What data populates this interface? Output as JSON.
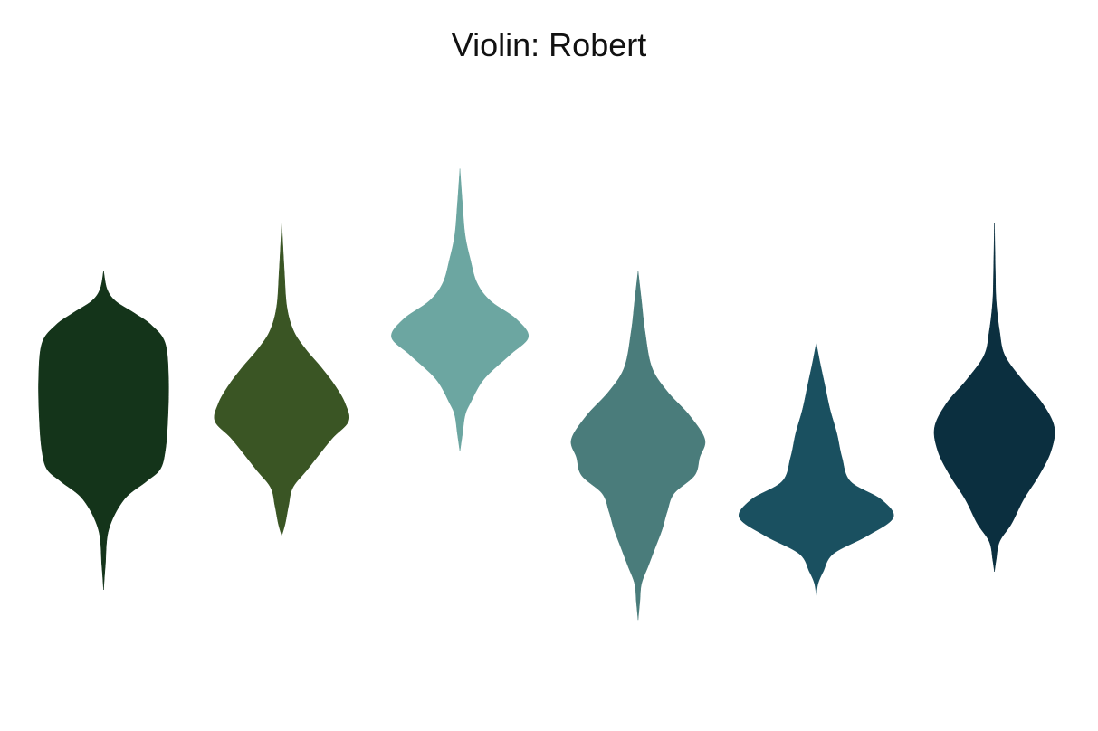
{
  "chart_data": {
    "type": "violin",
    "title": "Violin: Robert",
    "xlabel": "",
    "ylabel": "",
    "axes_visible": false,
    "grid": false,
    "legend": "none",
    "ylim": [
      0,
      100
    ],
    "series": [
      {
        "color": "#14341a",
        "min": 17,
        "max": 70,
        "profile": [
          [
            17,
            0
          ],
          [
            21,
            2
          ],
          [
            27,
            6
          ],
          [
            32,
            24
          ],
          [
            35,
            50
          ],
          [
            37,
            66
          ],
          [
            40,
            72
          ],
          [
            45,
            75
          ],
          [
            52,
            76
          ],
          [
            58,
            72
          ],
          [
            61,
            56
          ],
          [
            63,
            36
          ],
          [
            65,
            14
          ],
          [
            67,
            4
          ],
          [
            70,
            0
          ]
        ]
      },
      {
        "color": "#3a5524",
        "min": 26,
        "max": 78,
        "profile": [
          [
            26,
            0
          ],
          [
            28,
            4
          ],
          [
            31,
            8
          ],
          [
            34,
            13
          ],
          [
            37,
            30
          ],
          [
            42,
            58
          ],
          [
            45,
            78
          ],
          [
            48,
            74
          ],
          [
            51,
            62
          ],
          [
            54,
            46
          ],
          [
            57,
            28
          ],
          [
            60,
            14
          ],
          [
            64,
            6
          ],
          [
            70,
            3
          ],
          [
            78,
            0
          ]
        ]
      },
      {
        "color": "#6ca6a1",
        "min": 40,
        "max": 87,
        "profile": [
          [
            40,
            0
          ],
          [
            43,
            3
          ],
          [
            46,
            6
          ],
          [
            48,
            12
          ],
          [
            52,
            28
          ],
          [
            56,
            58
          ],
          [
            59,
            80
          ],
          [
            62,
            66
          ],
          [
            65,
            36
          ],
          [
            68,
            20
          ],
          [
            72,
            12
          ],
          [
            76,
            6
          ],
          [
            81,
            3
          ],
          [
            87,
            0
          ]
        ]
      },
      {
        "color": "#4a7c7b",
        "min": 12,
        "max": 70,
        "profile": [
          [
            12,
            0
          ],
          [
            15,
            2
          ],
          [
            18,
            4
          ],
          [
            21,
            12
          ],
          [
            24,
            20
          ],
          [
            27,
            28
          ],
          [
            30,
            34
          ],
          [
            33,
            42
          ],
          [
            36,
            66
          ],
          [
            39,
            72
          ],
          [
            42,
            78
          ],
          [
            46,
            60
          ],
          [
            50,
            34
          ],
          [
            54,
            16
          ],
          [
            60,
            8
          ],
          [
            65,
            4
          ],
          [
            70,
            0
          ]
        ]
      },
      {
        "color": "#1a5060",
        "min": 16,
        "max": 58,
        "profile": [
          [
            16,
            0
          ],
          [
            18,
            2
          ],
          [
            20,
            8
          ],
          [
            23,
            20
          ],
          [
            26,
            60
          ],
          [
            29,
            90
          ],
          [
            32,
            76
          ],
          [
            35,
            40
          ],
          [
            39,
            30
          ],
          [
            43,
            24
          ],
          [
            47,
            16
          ],
          [
            51,
            10
          ],
          [
            55,
            4
          ],
          [
            58,
            0
          ]
        ]
      },
      {
        "color": "#0b2f3f",
        "min": 20,
        "max": 78,
        "profile": [
          [
            20,
            0
          ],
          [
            22,
            2
          ],
          [
            25,
            6
          ],
          [
            28,
            20
          ],
          [
            32,
            34
          ],
          [
            36,
            52
          ],
          [
            40,
            66
          ],
          [
            44,
            70
          ],
          [
            48,
            56
          ],
          [
            52,
            32
          ],
          [
            56,
            12
          ],
          [
            60,
            6
          ],
          [
            65,
            2
          ],
          [
            70,
            1
          ],
          [
            78,
            0
          ]
        ]
      }
    ]
  }
}
